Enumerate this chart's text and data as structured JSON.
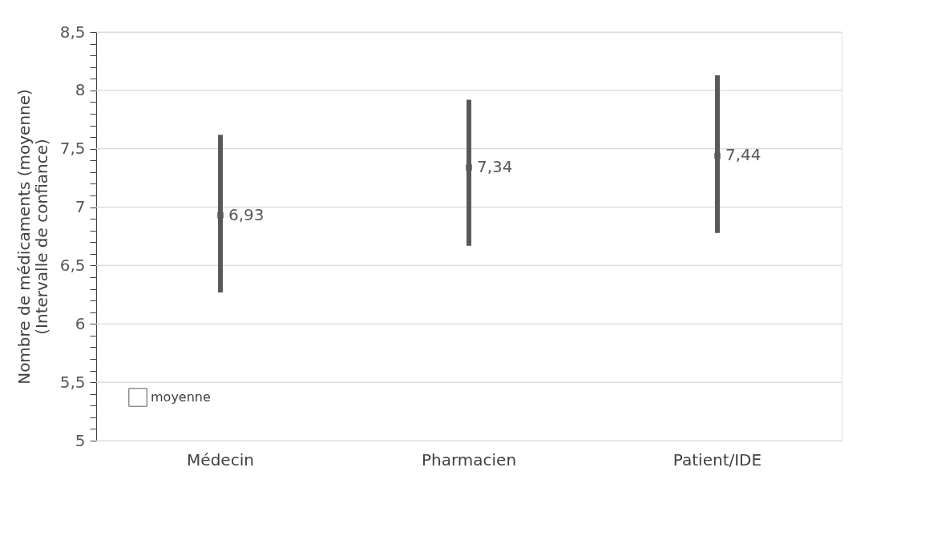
{
  "chart_data": {
    "type": "scatter",
    "ylabel": "Nombre de médicaments (moyenne)\n(Intervalle de confiance)",
    "categories": [
      "Médecin",
      "Pharmacien",
      "Patient/IDE"
    ],
    "series": [
      {
        "name": "moyenne",
        "color": "#595959",
        "values": [
          6.93,
          7.34,
          7.44
        ],
        "errors": [
          [
            6.27,
            7.62
          ],
          [
            6.67,
            7.92
          ],
          [
            6.78,
            8.13
          ]
        ],
        "value_labels": [
          "6,93",
          "7,34",
          "7,44"
        ]
      }
    ],
    "marker": "square",
    "ylim": [
      5,
      8.5
    ],
    "yticks": [
      5,
      {
        "value": 5.1,
        "label": null
      },
      {
        "value": 5.2,
        "label": null
      },
      {
        "value": 5.3,
        "label": null
      },
      {
        "value": 5.4,
        "label": null
      },
      {
        "value": 5.5,
        "label": "5,5"
      },
      {
        "value": 5.6,
        "label": null
      },
      {
        "value": 5.7,
        "label": null
      },
      {
        "value": 5.8,
        "label": null
      },
      {
        "value": 5.9,
        "label": null
      },
      6,
      {
        "value": 6.1,
        "label": null
      },
      {
        "value": 6.2,
        "label": null
      },
      {
        "value": 6.3,
        "label": null
      },
      {
        "value": 6.4,
        "label": null
      },
      {
        "value": 6.5,
        "label": "6,5"
      },
      {
        "value": 6.6,
        "label": null
      },
      {
        "value": 6.7,
        "label": null
      },
      {
        "value": 6.8,
        "label": null
      },
      {
        "value": 6.9,
        "label": null
      },
      7,
      {
        "value": 7.1,
        "label": null
      },
      {
        "value": 7.2,
        "label": null
      },
      {
        "value": 7.3,
        "label": null
      },
      {
        "value": 7.4,
        "label": null
      },
      {
        "value": 7.5,
        "label": "7,5"
      },
      {
        "value": 7.6,
        "label": null
      },
      {
        "value": 7.7,
        "label": null
      },
      {
        "value": 7.8,
        "label": null
      },
      {
        "value": 7.9,
        "label": null
      },
      8,
      {
        "value": 8.1,
        "label": null
      },
      {
        "value": 8.2,
        "label": null
      },
      {
        "value": 8.3,
        "label": null
      },
      {
        "value": 8.4,
        "label": null
      },
      {
        "value": 8.5,
        "label": "8,5"
      }
    ],
    "grid": "y",
    "legend": "bottom left"
  }
}
